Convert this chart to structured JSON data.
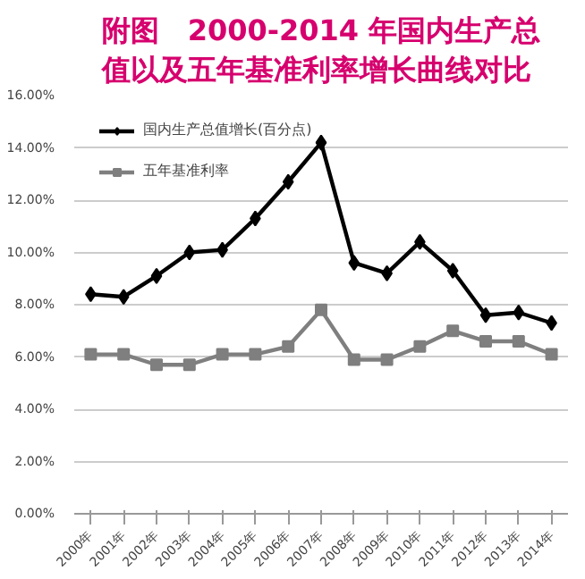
{
  "chart_data": {
    "type": "line",
    "title": "附图　2000-2014 年国内生产总值以及五年基准利率增长曲线对比",
    "categories": [
      "2000年",
      "2001年",
      "2002年",
      "2003年",
      "2004年",
      "2005年",
      "2006年",
      "2007年",
      "2008年",
      "2009年",
      "2010年",
      "2011年",
      "2012年",
      "2013年",
      "2014年"
    ],
    "series": [
      {
        "name": "国内生产总值增长(百分点)",
        "color": "#000000",
        "marker": "diamond",
        "values": [
          8.4,
          8.3,
          9.1,
          10.0,
          10.1,
          11.3,
          12.7,
          14.2,
          9.6,
          9.2,
          10.4,
          9.3,
          7.6,
          7.7,
          7.3
        ]
      },
      {
        "name": "五年基准利率",
        "color": "#7f7f7f",
        "marker": "square",
        "values": [
          6.1,
          6.1,
          5.7,
          5.7,
          6.1,
          6.1,
          6.4,
          7.8,
          5.9,
          5.9,
          6.4,
          7.0,
          6.6,
          6.6,
          6.1
        ]
      }
    ],
    "ylim": [
      0,
      16
    ],
    "yticks": [
      {
        "value": 0,
        "label": "0.00%"
      },
      {
        "value": 2,
        "label": "2.00%"
      },
      {
        "value": 4,
        "label": "4.00%"
      },
      {
        "value": 6,
        "label": "6.00%"
      },
      {
        "value": 8,
        "label": "8.00%"
      },
      {
        "value": 10,
        "label": "10.00%"
      },
      {
        "value": 12,
        "label": "12.00%"
      },
      {
        "value": 14,
        "label": "14.00%"
      },
      {
        "value": 16,
        "label": "16.00%"
      }
    ],
    "grid": "y",
    "legend": "top left",
    "line_style": "solid"
  }
}
